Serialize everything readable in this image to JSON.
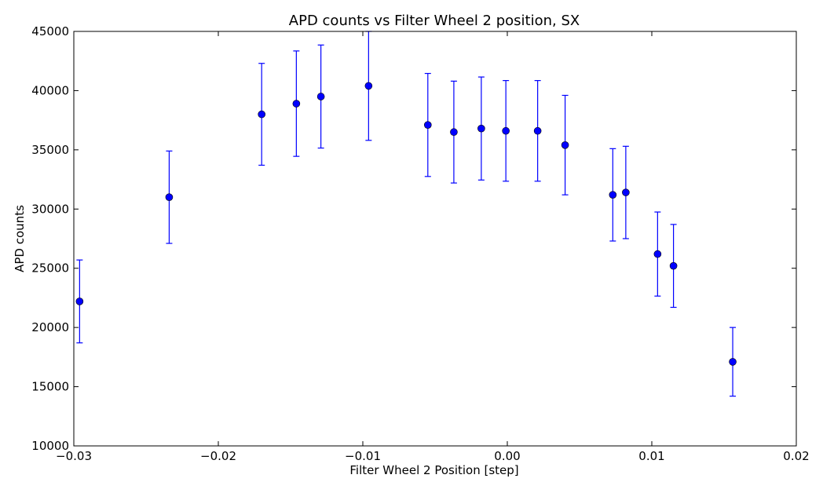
{
  "chart_data": {
    "type": "scatter",
    "title": "APD counts vs Filter Wheel 2 position, SX",
    "xlabel": "Filter Wheel 2 Position [step]",
    "ylabel": "APD counts",
    "xlim": [
      -0.03,
      0.02
    ],
    "ylim": [
      10000,
      45000
    ],
    "xticks": [
      -0.03,
      -0.02,
      -0.01,
      0.0,
      0.01,
      0.02
    ],
    "xtick_labels": [
      "−0.03",
      "−0.02",
      "−0.01",
      "0.00",
      "0.01",
      "0.02"
    ],
    "yticks": [
      10000,
      15000,
      20000,
      25000,
      30000,
      35000,
      40000,
      45000
    ],
    "ytick_labels": [
      "10000",
      "15000",
      "20000",
      "25000",
      "30000",
      "35000",
      "40000",
      "45000"
    ],
    "grid": false,
    "marker_color": "#0000ff",
    "points": [
      {
        "x": -0.0296,
        "y": 22200,
        "err": 3500
      },
      {
        "x": -0.0234,
        "y": 31000,
        "err": 3900
      },
      {
        "x": -0.017,
        "y": 38000,
        "err": 4300
      },
      {
        "x": -0.0146,
        "y": 38900,
        "err": 4450
      },
      {
        "x": -0.0129,
        "y": 39500,
        "err": 4350
      },
      {
        "x": -0.0096,
        "y": 40400,
        "err": 4600
      },
      {
        "x": -0.0055,
        "y": 37100,
        "err": 4350
      },
      {
        "x": -0.0037,
        "y": 36500,
        "err": 4300
      },
      {
        "x": -0.0018,
        "y": 36800,
        "err": 4350
      },
      {
        "x": -0.0001,
        "y": 36600,
        "err": 4250
      },
      {
        "x": 0.0021,
        "y": 36600,
        "err": 4250
      },
      {
        "x": 0.004,
        "y": 35400,
        "err": 4200
      },
      {
        "x": 0.0073,
        "y": 31200,
        "err": 3900
      },
      {
        "x": 0.0082,
        "y": 31400,
        "err": 3900
      },
      {
        "x": 0.0104,
        "y": 26200,
        "err": 3550
      },
      {
        "x": 0.0115,
        "y": 25200,
        "err": 3500
      },
      {
        "x": 0.0156,
        "y": 17100,
        "err": 2900
      }
    ]
  }
}
